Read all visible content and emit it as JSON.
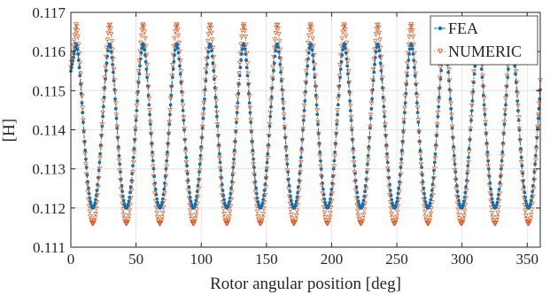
{
  "chart_data": {
    "type": "line",
    "xlabel": "Rotor angular position [deg]",
    "ylabel": "[H]",
    "xlim": [
      0,
      360
    ],
    "ylim": [
      0.111,
      0.117
    ],
    "xticks": [
      0,
      50,
      100,
      150,
      200,
      250,
      300,
      350
    ],
    "yticks": [
      0.111,
      0.112,
      0.113,
      0.114,
      0.115,
      0.116,
      0.117
    ],
    "xtick_labels": [
      "0",
      "50",
      "100",
      "150",
      "200",
      "250",
      "300",
      "350"
    ],
    "ytick_labels": [
      "0.111",
      "0.112",
      "0.113",
      "0.114",
      "0.115",
      "0.116",
      "0.117"
    ],
    "grid": true,
    "legend_position": "top-right",
    "period_deg": 25.7,
    "first_peak_deg": 4,
    "sample_step_deg": 0.5,
    "series": [
      {
        "name": "FEA",
        "color": "#0072BD",
        "marker": "filled-circle",
        "line": "dash-dot",
        "min": 0.112,
        "max": 0.1162,
        "start_value": 0.1155
      },
      {
        "name": "NUMERIC",
        "color": "#D95319",
        "marker": "open-triangle-down",
        "line": "dotted",
        "min": 0.1116,
        "max": 0.1167,
        "start_value": 0.1156
      }
    ]
  }
}
